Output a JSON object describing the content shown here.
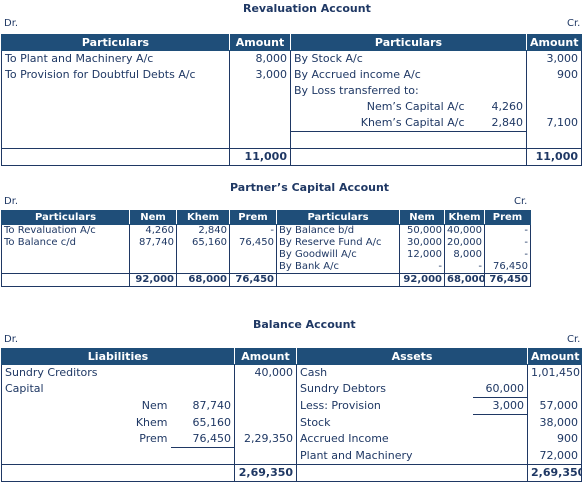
{
  "revaluation": {
    "title": "Revaluation Account",
    "dr": "Dr.",
    "cr": "Cr.",
    "headers": {
      "particulars_left": "Particulars",
      "amount_left": "Amount",
      "particulars_right": "Particulars",
      "amount_right": "Amount"
    },
    "left_rows": [
      {
        "particulars": "To Plant and Machinery A/c",
        "amount": "8,000"
      },
      {
        "particulars": "To Provision for Doubtful Debts A/c",
        "amount": "3,000"
      }
    ],
    "right_rows": [
      {
        "particulars": "By Stock A/c",
        "amount": "3,000"
      },
      {
        "particulars": "By Accrued income A/c",
        "amount": "900"
      },
      {
        "particulars": "By Loss transferred to:",
        "amount": ""
      }
    ],
    "loss_split": [
      {
        "name": "Nem’s Capital A/c",
        "value": "4,260"
      },
      {
        "name": "Khem’s Capital A/c",
        "value": "2,840"
      }
    ],
    "loss_total": "7,100",
    "total_left": "11,000",
    "total_right": "11,000"
  },
  "capital": {
    "title": "Partner’s Capital Account",
    "dr": "Dr.",
    "cr": "Cr.",
    "headers": [
      "Particulars",
      "Nem",
      "Khem",
      "Prem",
      "Particulars",
      "Nem",
      "Khem",
      "Prem"
    ],
    "left_rows": [
      {
        "particulars": "To Revaluation A/c",
        "nem": "4,260",
        "khem": "2,840",
        "prem": "-"
      },
      {
        "particulars": "To Balance c/d",
        "nem": "87,740",
        "khem": "65,160",
        "prem": "76,450"
      }
    ],
    "right_rows": [
      {
        "particulars": "By Balance b/d",
        "nem": "50,000",
        "khem": "40,000",
        "prem": "-"
      },
      {
        "particulars": "By Reserve Fund A/c",
        "nem": "30,000",
        "khem": "20,000",
        "prem": "-"
      },
      {
        "particulars": "By Goodwill A/c",
        "nem": "12,000",
        "khem": "8,000",
        "prem": "-"
      },
      {
        "particulars": "By Bank A/c",
        "nem": "-",
        "khem": "-",
        "prem": "76,450"
      }
    ],
    "totals_left": {
      "nem": "92,000",
      "khem": "68,000",
      "prem": "76,450"
    },
    "totals_right": {
      "nem": "92,000",
      "khem": "68,000",
      "prem": "76,450"
    }
  },
  "balance": {
    "title": "Balance Account",
    "dr": "Dr.",
    "cr": "Cr.",
    "headers": {
      "liabilities": "Liabilities",
      "amount_left": "Amount",
      "assets": "Assets",
      "amount_right": "Amount"
    },
    "sundry_creditors": {
      "label": "Sundry Creditors",
      "amount": "40,000"
    },
    "capital_label": "Capital",
    "capitals": [
      {
        "name": "Nem",
        "value": "87,740"
      },
      {
        "name": "Khem",
        "value": "65,160"
      },
      {
        "name": "Prem",
        "value": "76,450"
      }
    ],
    "capital_total": "2,29,350",
    "assets": {
      "cash": {
        "label": "Cash",
        "amount": "1,01,450"
      },
      "debtors": {
        "label": "Sundry Debtors",
        "sub": "60,000"
      },
      "provision": {
        "label": "Less: Provision",
        "sub": "3,000",
        "amount": "57,000"
      },
      "stock": {
        "label": "Stock",
        "amount": "38,000"
      },
      "accrued": {
        "label": "Accrued Income",
        "amount": "900"
      },
      "plant": {
        "label": "Plant and Machinery",
        "amount": "72,000"
      }
    },
    "total_left": "2,69,350",
    "total_right": "2,69,350"
  }
}
